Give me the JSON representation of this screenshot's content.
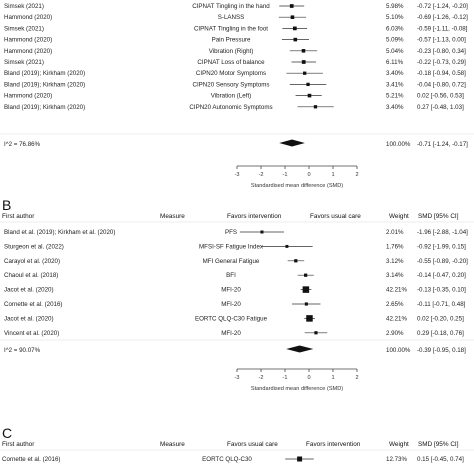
{
  "chart_data": [
    {
      "type": "forest",
      "panel": "",
      "rows": [
        {
          "author": "Simsek (2021)",
          "measure": "CIPNAT Tingling in the hand",
          "weight": "5.98%",
          "ci_text": "-0.72 [-1.24, -0.20]",
          "smd": -0.72,
          "lo": -1.24,
          "hi": -0.2
        },
        {
          "author": "Hammond (2020)",
          "measure": "S-LANSS",
          "weight": "5.10%",
          "ci_text": "-0.69 [-1.26, -0.12]",
          "smd": -0.69,
          "lo": -1.26,
          "hi": -0.12
        },
        {
          "author": "Simsek (2021)",
          "measure": "CIPNAT Tingling in the foot",
          "weight": "6.03%",
          "ci_text": "-0.59 [-1.11, -0.08]",
          "smd": -0.59,
          "lo": -1.11,
          "hi": -0.08
        },
        {
          "author": "Hammond (2020)",
          "measure": "Pain Pressure",
          "weight": "5.09%",
          "ci_text": "-0.57 [-1.13, 0.00]",
          "smd": -0.57,
          "lo": -1.13,
          "hi": 0.0
        },
        {
          "author": "Hammond (2020)",
          "measure": "Vibration (Right)",
          "weight": "5.04%",
          "ci_text": "-0.23 [-0.80, 0.34]",
          "smd": -0.23,
          "lo": -0.8,
          "hi": 0.34
        },
        {
          "author": "Simsek (2021)",
          "measure": "CIPNAT Loss of balance",
          "weight": "6.11%",
          "ci_text": "-0.22 [-0.73, 0.29]",
          "smd": -0.22,
          "lo": -0.73,
          "hi": 0.29
        },
        {
          "author": "Bland (2019); Kirkham (2020)",
          "measure": "CIPN20 Motor Symptoms",
          "weight": "3.40%",
          "ci_text": "-0.18 [-0.94, 0.58]",
          "smd": -0.18,
          "lo": -0.94,
          "hi": 0.58
        },
        {
          "author": "Bland (2019); Kirkham (2020)",
          "measure": "CIPN20 Sensory Symptoms",
          "weight": "3.41%",
          "ci_text": "-0.04 [-0.80, 0.72]",
          "smd": -0.04,
          "lo": -0.8,
          "hi": 0.72
        },
        {
          "author": "Hammond (2020)",
          "measure": "Vibration (Left)",
          "weight": "5.21%",
          "ci_text": "0.02 [-0.56, 0.53]",
          "smd": 0.02,
          "lo": -0.56,
          "hi": 0.53
        },
        {
          "author": "Bland (2019); Kirkham (2020)",
          "measure": "CIPN20 Autonomic Symptoms",
          "weight": "3.40%",
          "ci_text": "0.27 [-0.48, 1.03]",
          "smd": 0.27,
          "lo": -0.48,
          "hi": 1.03
        }
      ],
      "overall": {
        "label": "I^2 = 76.86%",
        "weight": "100.00%",
        "ci_text": "-0.71 [-1.24, -0.17]",
        "smd": -0.71,
        "lo": -1.24,
        "hi": -0.17
      },
      "xticks": [
        "-3",
        "-2",
        "-1",
        "0",
        "1",
        "2"
      ],
      "xlim": [
        -3,
        2
      ],
      "xlabel": "Standardised mean difference (SMD)"
    },
    {
      "type": "forest",
      "panel": "B",
      "headers": {
        "author": "First author",
        "measure": "Measure",
        "left": "Favors intervention",
        "right": "Favors usual care",
        "weight": "Weight",
        "ci": "SMD [95% CI]"
      },
      "rows": [
        {
          "author": "Bland et al. (2019); Kirkham et al. (2020)",
          "measure": "PFS",
          "weight": "2.01%",
          "ci_text": "-1.96 [-2.88, -1.04]",
          "smd": -1.96,
          "lo": -2.88,
          "hi": -1.04
        },
        {
          "author": "Sturgeon et al. (2022)",
          "measure": "MFSI-SF Fatigue Index",
          "weight": "1.76%",
          "ci_text": "-0.92 [-1.99, 0.15]",
          "smd": -0.92,
          "lo": -1.99,
          "hi": 0.15
        },
        {
          "author": "Carayol et al. (2020)",
          "measure": "MFI General Fatigue",
          "weight": "3.12%",
          "ci_text": "-0.55 [-0.89, -0.20]",
          "smd": -0.55,
          "lo": -0.89,
          "hi": -0.2
        },
        {
          "author": "Chaoul et al. (2018)",
          "measure": "BFI",
          "weight": "3.14%",
          "ci_text": "-0.14 [-0.47, 0.20]",
          "smd": -0.14,
          "lo": -0.47,
          "hi": 0.2
        },
        {
          "author": "Jacot et al. (2020)",
          "measure": "MFI-20",
          "weight": "42.21%",
          "ci_text": "-0.13 [-0.35, 0.10]",
          "smd": -0.13,
          "lo": -0.35,
          "hi": 0.1
        },
        {
          "author": "Cornette et al. (2016)",
          "measure": "MFI-20",
          "weight": "2.65%",
          "ci_text": "-0.11 [-0.71, 0.48]",
          "smd": -0.11,
          "lo": -0.71,
          "hi": 0.48
        },
        {
          "author": "Jacot et al. (2020)",
          "measure": "EORTC QLQ-C30 Fatigue",
          "weight": "42.21%",
          "ci_text": "0.02 [-0.20, 0.25]",
          "smd": 0.02,
          "lo": -0.2,
          "hi": 0.25
        },
        {
          "author": "Vincent et al. (2020)",
          "measure": "MFI-20",
          "weight": "2.90%",
          "ci_text": "0.29 [-0.18, 0.76]",
          "smd": 0.29,
          "lo": -0.18,
          "hi": 0.76
        }
      ],
      "overall": {
        "label": "I^2 = 90.07%",
        "weight": "100.00%",
        "ci_text": "-0.39 [-0.95, 0.18]",
        "smd": -0.39,
        "lo": -0.95,
        "hi": 0.18
      },
      "xticks": [
        "-3",
        "-2",
        "-1",
        "0",
        "1",
        "2"
      ],
      "xlim": [
        -3,
        2
      ],
      "xlabel": "Standardised mean difference (SMD)"
    },
    {
      "type": "forest",
      "panel": "C",
      "headers": {
        "author": "First author",
        "measure": "Measure",
        "left": "Favors usual care",
        "right": "Favors intervention",
        "weight": "Weight",
        "ci": "SMD [95% CI]"
      },
      "rows": [
        {
          "author": "Cornette et al. (2016)",
          "measure": "EORTC QLQ-C30",
          "weight": "12.73%",
          "ci_text": "0.15 [-0.45, 0.74]",
          "smd": 0.15,
          "lo": -0.45,
          "hi": 0.74
        }
      ]
    }
  ]
}
